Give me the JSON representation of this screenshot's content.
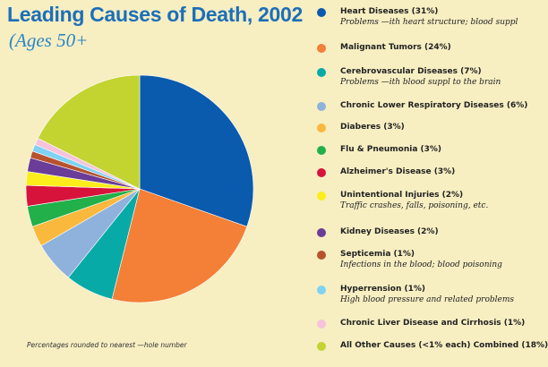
{
  "header": {
    "title": "Leading Causes of Death, 2002",
    "subtitle": "(Ages 50+"
  },
  "footnote": "Percentages rounded to nearest —hole number",
  "chart_data": {
    "type": "pie",
    "title": "Leading Causes of Death, 2002",
    "subtitle": "(Ages 50+",
    "legend_placement": "right",
    "slices": [
      {
        "label": "Heart Diseases (31%)",
        "value": 31,
        "color": "#0a5aad",
        "description": "Problems —ith heart structure; blood suppl"
      },
      {
        "label": "Malignant Tumors (24%)",
        "value": 24,
        "color": "#f47f36",
        "description": ""
      },
      {
        "label": "Cerebrovascular Diseases (7%)",
        "value": 7,
        "color": "#08aaa7",
        "description": "Problems —ith blood suppl   to the brain"
      },
      {
        "label": "Chronic Lower Respiratory Diseases (6%)",
        "value": 6,
        "color": "#8eb2dc",
        "description": ""
      },
      {
        "label": "Diaberes (3%)",
        "value": 3,
        "color": "#fab83c",
        "description": ""
      },
      {
        "label": "Flu & Pneumonia (3%)",
        "value": 3,
        "color": "#22b04a",
        "description": ""
      },
      {
        "label": "Alzheimer's Disease (3%)",
        "value": 3,
        "color": "#d7133c",
        "description": ""
      },
      {
        "label": "Unintentional Injuries (2%)",
        "value": 2,
        "color": "#fbee1a",
        "description": "Traffic crashes, falls, poisoning, etc."
      },
      {
        "label": "Kidney Diseases (2%)",
        "value": 2,
        "color": "#6a3d98",
        "description": ""
      },
      {
        "label": "Septicemia (1%)",
        "value": 1,
        "color": "#b8522e",
        "description": "Infections in the blood; blood poisoning"
      },
      {
        "label": "Hyperrension (1%)",
        "value": 1,
        "color": "#7fd2f2",
        "description": "High blood pressure and related problems"
      },
      {
        "label": "Chronic Liver Disease and Cirrhosis (1%)",
        "value": 1,
        "color": "#f6c3db",
        "description": ""
      },
      {
        "label": "All Other Causes (<1% each) Combined (18%)",
        "value": 18,
        "color": "#c3d430",
        "description": ""
      }
    ]
  }
}
